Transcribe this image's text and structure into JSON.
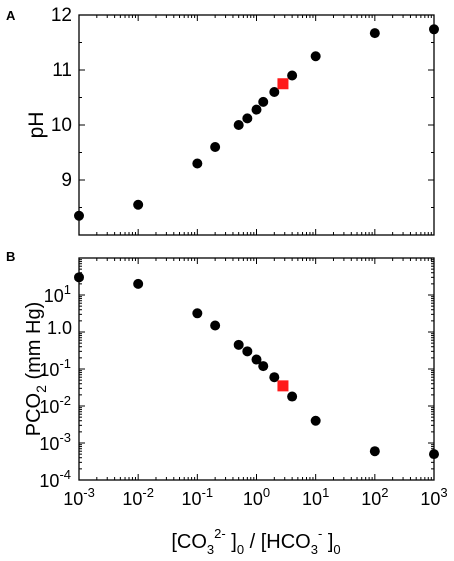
{
  "chart_data": [
    {
      "panel": "A",
      "type": "scatter",
      "title": "",
      "xlabel": "",
      "ylabel": "pH",
      "xscale": "log",
      "xlim": [
        0.001,
        1000
      ],
      "ylim": [
        8,
        12
      ],
      "yticks": [
        "9",
        "10",
        "11",
        "12"
      ],
      "series": [
        {
          "marker": "circle",
          "color": "#000000",
          "points": [
            {
              "x": 0.001,
              "y": 8.35
            },
            {
              "x": 0.01,
              "y": 8.55
            },
            {
              "x": 0.1,
              "y": 9.3
            },
            {
              "x": 0.2,
              "y": 9.6
            },
            {
              "x": 0.5,
              "y": 10.0
            },
            {
              "x": 0.7,
              "y": 10.12
            },
            {
              "x": 1.0,
              "y": 10.28
            },
            {
              "x": 1.3,
              "y": 10.42
            },
            {
              "x": 2.0,
              "y": 10.6
            },
            {
              "x": 4.0,
              "y": 10.9
            },
            {
              "x": 10,
              "y": 11.25
            },
            {
              "x": 100,
              "y": 11.67
            },
            {
              "x": 1000,
              "y": 11.74
            }
          ]
        },
        {
          "marker": "square",
          "color": "#ff1a1a",
          "points": [
            {
              "x": 2.8,
              "y": 10.75
            }
          ]
        }
      ]
    },
    {
      "panel": "B",
      "type": "scatter",
      "title": "",
      "xlabel": "[CO3 2- ]0 / [HCO3 - ]0",
      "xlabel_parts": {
        "open": "[CO",
        "sub1": "3",
        "sup1": "2-",
        "mid": " ]",
        "sub2": "0",
        "sep": " / [HCO",
        "sub3": "3",
        "sup2": "-",
        "close": " ]",
        "sub4": "0"
      },
      "ylabel": "PCO2 (mm Hg)",
      "ylabel_parts": {
        "pre": "PCO",
        "sub": "2",
        "post": " (mm Hg)"
      },
      "xscale": "log",
      "yscale": "log",
      "xlim": [
        0.001,
        1000
      ],
      "ylim": [
        0.0001,
        100
      ],
      "xtick_exps": [
        "-3",
        "-2",
        "-1",
        "0",
        "1",
        "2",
        "3"
      ],
      "ytick_labels": [
        {
          "base": "10",
          "exp": "-4"
        },
        {
          "base": "10",
          "exp": "-3"
        },
        {
          "base": "10",
          "exp": "-2"
        },
        {
          "base": "10",
          "exp": "-1"
        },
        {
          "base": "10",
          "exp": ""
        },
        {
          "base": "10",
          "exp": "1"
        }
      ],
      "ytick_values": [
        0.0001,
        0.001,
        0.01,
        0.1,
        1,
        10
      ],
      "ytick_mid_texts": [
        "10-4",
        "10-3",
        "10-2",
        "10-1",
        "1.0",
        "10"
      ],
      "series": [
        {
          "marker": "circle",
          "color": "#000000",
          "points": [
            {
              "x": 0.001,
              "y": 30
            },
            {
              "x": 0.01,
              "y": 20
            },
            {
              "x": 0.1,
              "y": 3.2
            },
            {
              "x": 0.2,
              "y": 1.5
            },
            {
              "x": 0.5,
              "y": 0.45
            },
            {
              "x": 0.7,
              "y": 0.3
            },
            {
              "x": 1.0,
              "y": 0.18
            },
            {
              "x": 1.3,
              "y": 0.12
            },
            {
              "x": 2.0,
              "y": 0.06
            },
            {
              "x": 4.0,
              "y": 0.018
            },
            {
              "x": 10,
              "y": 0.004
            },
            {
              "x": 100,
              "y": 0.0006
            },
            {
              "x": 1000,
              "y": 0.0005
            }
          ]
        },
        {
          "marker": "square",
          "color": "#ff1a1a",
          "points": [
            {
              "x": 2.8,
              "y": 0.035
            }
          ]
        }
      ]
    }
  ]
}
